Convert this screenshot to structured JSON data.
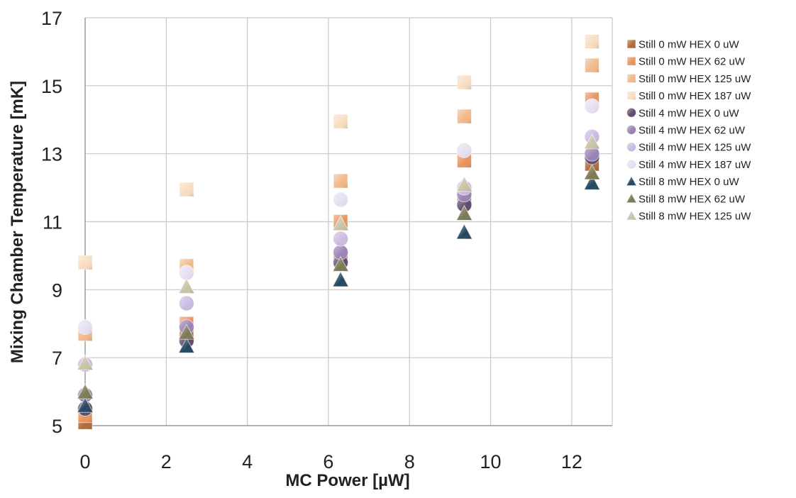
{
  "chart_data": {
    "type": "scatter",
    "title": "",
    "xlabel": "MC Power [µW]",
    "ylabel": "Mixing Chamber Temperature [mK]",
    "xlim": [
      0,
      13
    ],
    "ylim": [
      5,
      17
    ],
    "xticks": [
      0,
      2,
      4,
      6,
      8,
      10,
      12
    ],
    "yticks": [
      5,
      7,
      9,
      11,
      13,
      15,
      17
    ],
    "grid": true,
    "legend": "right",
    "series": [
      {
        "name": "Still 0 mW HEX 0 uW",
        "marker": "square",
        "color": "#b06a3a",
        "x": [
          0,
          2.5,
          6.3,
          9.35,
          12.5
        ],
        "y": [
          5.1,
          7.6,
          9.9,
          11.6,
          12.7
        ]
      },
      {
        "name": "Still 0 mW HEX 62 uW",
        "marker": "square",
        "color": "#e9925a",
        "x": [
          0,
          2.5,
          6.3,
          9.35,
          12.5
        ],
        "y": [
          5.3,
          8.0,
          11.0,
          12.8,
          14.6
        ]
      },
      {
        "name": "Still 0 mW HEX 125 uW",
        "marker": "square",
        "color": "#f0b88a",
        "x": [
          0,
          2.5,
          6.3,
          9.35,
          12.5
        ],
        "y": [
          7.7,
          9.7,
          12.2,
          14.1,
          15.6
        ]
      },
      {
        "name": "Still 0 mW HEX 187 uW",
        "marker": "square",
        "color": "#f8dcc0",
        "x": [
          0,
          2.5,
          6.3,
          9.35,
          12.5
        ],
        "y": [
          9.8,
          11.95,
          13.95,
          15.1,
          16.3
        ]
      },
      {
        "name": "Still 4 mW HEX 0 uW",
        "marker": "circle",
        "color": "#5e4a6e",
        "x": [
          0,
          2.5,
          6.3,
          9.35,
          12.5
        ],
        "y": [
          5.5,
          7.5,
          9.8,
          11.5,
          12.9
        ]
      },
      {
        "name": "Still 4 mW HEX 62 uW",
        "marker": "circle",
        "color": "#9a82b4",
        "x": [
          0,
          2.5,
          6.3,
          9.35,
          12.5
        ],
        "y": [
          5.9,
          7.9,
          10.1,
          11.8,
          13.0
        ]
      },
      {
        "name": "Still 4 mW HEX 125 uW",
        "marker": "circle",
        "color": "#cabbe0",
        "x": [
          0,
          2.5,
          6.3,
          9.35,
          12.5
        ],
        "y": [
          6.8,
          8.6,
          10.5,
          12.0,
          13.5
        ]
      },
      {
        "name": "Still 4 mW HEX 187 uW",
        "marker": "circle",
        "color": "#e6dff0",
        "x": [
          0,
          2.5,
          6.3,
          9.35,
          12.5
        ],
        "y": [
          7.9,
          9.5,
          11.65,
          13.1,
          14.4
        ]
      },
      {
        "name": "Still 8 mW HEX 0 uW",
        "marker": "triangle",
        "color": "#24465e",
        "x": [
          0,
          2.5,
          6.3,
          9.35,
          12.5
        ],
        "y": [
          5.6,
          7.35,
          9.3,
          10.7,
          12.15
        ]
      },
      {
        "name": "Still 8 mW HEX 62 uW",
        "marker": "triangle",
        "color": "#7a7a52",
        "x": [
          0,
          2.5,
          6.3,
          9.35,
          12.5
        ],
        "y": [
          6.0,
          7.75,
          9.75,
          11.25,
          12.45
        ]
      },
      {
        "name": "Still 8 mW HEX 125 uW",
        "marker": "triangle",
        "color": "#c8c4a6",
        "x": [
          0,
          2.5,
          6.3,
          9.35,
          12.5
        ],
        "y": [
          6.85,
          9.1,
          10.95,
          12.1,
          13.35
        ]
      }
    ]
  }
}
